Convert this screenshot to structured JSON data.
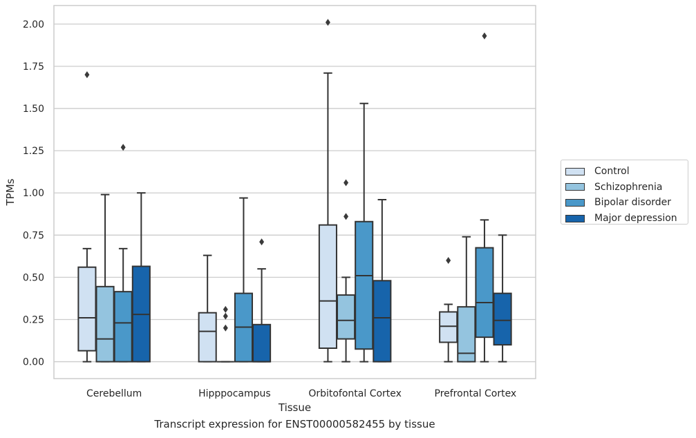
{
  "caption": "Transcript expression for ENST00000582455 by tissue",
  "chart_data": {
    "type": "box",
    "xlabel": "Tissue",
    "ylabel": "TPMs",
    "ylim": [
      -0.1,
      2.11
    ],
    "yticks": [
      "0.00",
      "0.25",
      "0.50",
      "0.75",
      "1.00",
      "1.25",
      "1.50",
      "1.75",
      "2.00"
    ],
    "grid": "horizontal",
    "legend_position": "right",
    "categories": [
      "Cerebellum",
      "Hipppocampus",
      "Orbitofontal Cortex",
      "Prefrontal Cortex"
    ],
    "series": [
      {
        "name": "Control",
        "color": "#d0e1f2",
        "boxes": [
          {
            "whislo": 0.0,
            "q1": 0.065,
            "med": 0.26,
            "q3": 0.56,
            "whishi": 0.67,
            "fliers": [
              1.7
            ]
          },
          {
            "whislo": 0.0,
            "q1": 0.0,
            "med": 0.18,
            "q3": 0.29,
            "whishi": 0.63,
            "fliers": []
          },
          {
            "whislo": 0.0,
            "q1": 0.08,
            "med": 0.36,
            "q3": 0.81,
            "whishi": 1.71,
            "fliers": [
              2.01
            ]
          },
          {
            "whislo": 0.0,
            "q1": 0.115,
            "med": 0.21,
            "q3": 0.295,
            "whishi": 0.34,
            "fliers": [
              0.6
            ]
          }
        ]
      },
      {
        "name": "Schizophrenia",
        "color": "#94c4df",
        "boxes": [
          {
            "whislo": 0.0,
            "q1": 0.0,
            "med": 0.135,
            "q3": 0.445,
            "whishi": 0.99,
            "fliers": []
          },
          {
            "whislo": 0.0,
            "q1": 0.0,
            "med": 0.0,
            "q3": 0.0,
            "whishi": 0.0,
            "fliers": [
              0.2,
              0.27,
              0.31
            ]
          },
          {
            "whislo": 0.0,
            "q1": 0.135,
            "med": 0.245,
            "q3": 0.395,
            "whishi": 0.5,
            "fliers": [
              0.86,
              1.06
            ]
          },
          {
            "whislo": 0.0,
            "q1": 0.0,
            "med": 0.05,
            "q3": 0.325,
            "whishi": 0.74,
            "fliers": []
          }
        ]
      },
      {
        "name": "Bipolar disorder",
        "color": "#4a98c9",
        "boxes": [
          {
            "whislo": 0.0,
            "q1": 0.0,
            "med": 0.23,
            "q3": 0.415,
            "whishi": 0.67,
            "fliers": [
              1.27
            ]
          },
          {
            "whislo": 0.0,
            "q1": 0.0,
            "med": 0.205,
            "q3": 0.405,
            "whishi": 0.97,
            "fliers": []
          },
          {
            "whislo": 0.0,
            "q1": 0.075,
            "med": 0.51,
            "q3": 0.83,
            "whishi": 1.53,
            "fliers": []
          },
          {
            "whislo": 0.0,
            "q1": 0.145,
            "med": 0.35,
            "q3": 0.675,
            "whishi": 0.84,
            "fliers": [
              1.93
            ]
          }
        ]
      },
      {
        "name": "Major depression",
        "color": "#1764ab",
        "boxes": [
          {
            "whislo": 0.0,
            "q1": 0.0,
            "med": 0.28,
            "q3": 0.565,
            "whishi": 1.0,
            "fliers": []
          },
          {
            "whislo": 0.0,
            "q1": 0.0,
            "med": 0.0,
            "q3": 0.22,
            "whishi": 0.55,
            "fliers": [
              0.71
            ]
          },
          {
            "whislo": 0.0,
            "q1": 0.0,
            "med": 0.26,
            "q3": 0.48,
            "whishi": 0.96,
            "fliers": []
          },
          {
            "whislo": 0.0,
            "q1": 0.1,
            "med": 0.245,
            "q3": 0.405,
            "whishi": 0.75,
            "fliers": []
          }
        ]
      }
    ]
  }
}
